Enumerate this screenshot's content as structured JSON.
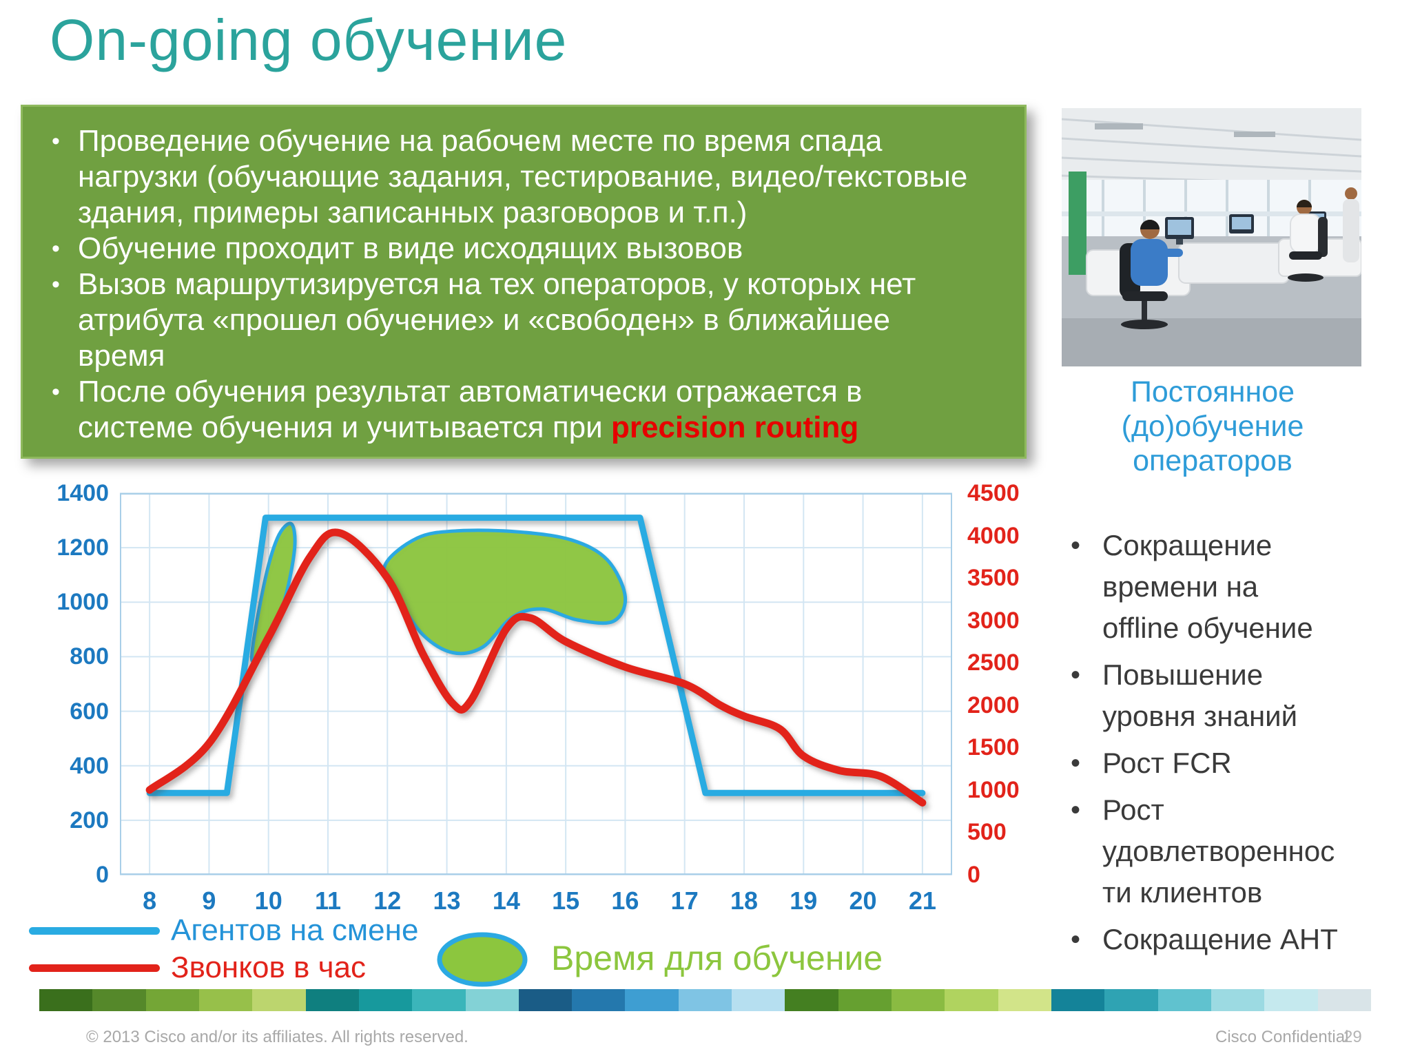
{
  "slide": {
    "title": "On-going обучение",
    "footer": {
      "copyright": "© 2013 Cisco and/or its affiliates. All rights reserved.",
      "confidential": "Cisco Confidential",
      "page_number": "29"
    },
    "stripe_colors": [
      "#3a6f1c",
      "#55882a",
      "#74a636",
      "#97c04a",
      "#bcd56e",
      "#0f7f7f",
      "#17999d",
      "#3bb5ba",
      "#83d2d6",
      "#1a5c86",
      "#2478ad",
      "#3e9ed2",
      "#7fc4e4",
      "#b6dff0",
      "#447f21",
      "#66a030",
      "#8abb42",
      "#b0d35f",
      "#d2e489",
      "#148399",
      "#2fa3b3",
      "#60c2cf",
      "#9cdae2",
      "#c5e9ee",
      "#d9e4e8"
    ]
  },
  "info_box": {
    "bg_color": "#70A041",
    "bullets": [
      "Проведение обучение на рабочем месте по время спада нагрузки (обучающие задания, тестирование, видео/текстовые здания, примеры записанных разговоров и т.п.)",
      "Обучение проходит в виде исходящих вызовов",
      "Вызов маршрутизируется на тех операторов, у которых нет атрибута «прошел обучение» и «свободен» в ближайшее время",
      "После обучения результат автоматически отражается в системе обучения и учитывается при "
    ],
    "highlight": "precision routing",
    "highlight_color": "#E60000"
  },
  "legend": {
    "agents": "Агентов на смене",
    "calls": "Звонков в час",
    "training": "Время для обучение"
  },
  "right_panel": {
    "heading": "Постоянное (до)обучение операторов",
    "heading_color": "#2E9CD8",
    "bullets": [
      "Сокращение времени на offline обучение",
      "Повышение уровня знаний",
      "Рост FCR",
      "Рост удовлетворенности клиентов",
      "Сокращение AHT"
    ]
  },
  "chart_data": {
    "type": "line",
    "x_ticks": [
      8,
      9,
      10,
      11,
      12,
      13,
      14,
      15,
      16,
      17,
      18,
      19,
      20,
      21
    ],
    "left_axis": {
      "min": 0,
      "max": 1400,
      "step": 200,
      "color": "#1C79C0",
      "series": "Агентов на смене"
    },
    "right_axis": {
      "min": 0,
      "max": 4500,
      "step": 500,
      "color": "#E2231A",
      "series": "Звонков в час"
    },
    "grid": true,
    "legend_position": "bottom",
    "series": [
      {
        "name": "Агентов на смене",
        "axis": "left",
        "type": "step",
        "color": "#29ABE2",
        "points": [
          [
            8,
            300
          ],
          [
            9.3,
            300
          ],
          [
            9.95,
            1310
          ],
          [
            16.25,
            1310
          ],
          [
            17.35,
            300
          ],
          [
            21,
            300
          ]
        ]
      },
      {
        "name": "Звонков в час",
        "axis": "right",
        "type": "smooth",
        "color": "#E2231A",
        "points": [
          [
            8,
            1000
          ],
          [
            9,
            1550
          ],
          [
            10,
            2800
          ],
          [
            10.7,
            3750
          ],
          [
            11.2,
            4030
          ],
          [
            12,
            3500
          ],
          [
            12.6,
            2600
          ],
          [
            13.1,
            2020
          ],
          [
            13.4,
            2050
          ],
          [
            14,
            2900
          ],
          [
            14.4,
            3030
          ],
          [
            15,
            2750
          ],
          [
            16,
            2450
          ],
          [
            17,
            2250
          ],
          [
            17.6,
            2000
          ],
          [
            18,
            1870
          ],
          [
            18.6,
            1720
          ],
          [
            19,
            1400
          ],
          [
            19.6,
            1230
          ],
          [
            20.3,
            1160
          ],
          [
            21,
            850
          ]
        ]
      }
    ],
    "training_areas": {
      "name": "Время для обучение",
      "units": "left-axis",
      "fill": "#8CC63E",
      "stroke": "#2BA9E2",
      "areas": [
        [
          [
            9.72,
            790
          ],
          [
            9.92,
            1060
          ],
          [
            10.15,
            1235
          ],
          [
            10.38,
            1288
          ],
          [
            10.44,
            1200
          ],
          [
            10.28,
            1015
          ],
          [
            10.02,
            868
          ]
        ],
        [
          [
            11.95,
            1130
          ],
          [
            12.5,
            1235
          ],
          [
            13.2,
            1262
          ],
          [
            14.2,
            1258
          ],
          [
            15.1,
            1228
          ],
          [
            15.7,
            1155
          ],
          [
            16.0,
            1020
          ],
          [
            15.8,
            930
          ],
          [
            15.2,
            935
          ],
          [
            14.6,
            975
          ],
          [
            14.1,
            945
          ],
          [
            13.6,
            835
          ],
          [
            13.1,
            815
          ],
          [
            12.6,
            880
          ],
          [
            12.2,
            1010
          ]
        ]
      ]
    }
  }
}
